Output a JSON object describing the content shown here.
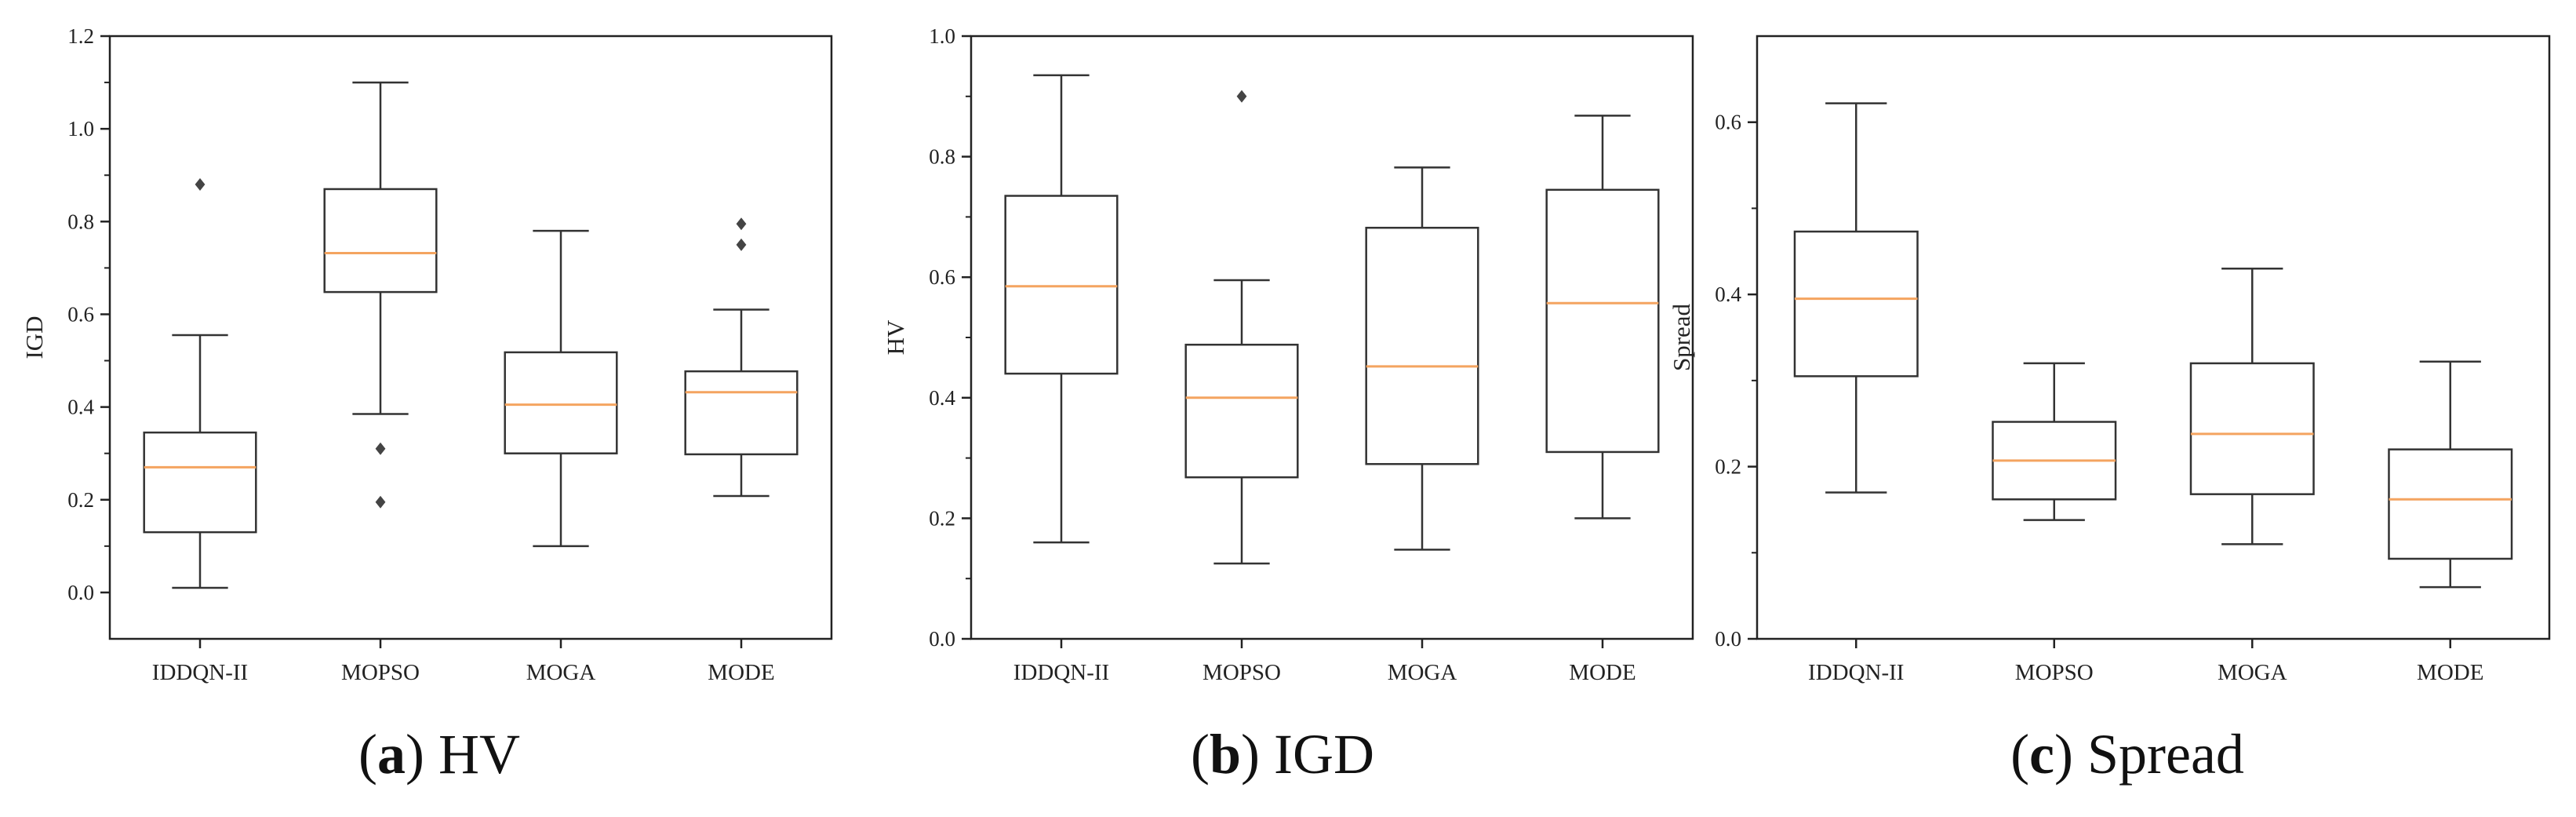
{
  "chart_data": [
    {
      "type": "box",
      "caption_letter": "a",
      "caption_text": "HV",
      "ylabel": "IGD",
      "ylim": [
        -0.1,
        1.2
      ],
      "yticks": [
        0.0,
        0.2,
        0.4,
        0.6,
        0.8,
        1.0,
        1.2
      ],
      "ytick_labels": [
        "0.0",
        "0.2",
        "0.4",
        "0.6",
        "0.8",
        "1.0",
        "1.2"
      ],
      "categories": [
        "IDDQN-II",
        "MOPSO",
        "MOGA",
        "MODE"
      ],
      "boxes": [
        {
          "whislo": 0.01,
          "q1": 0.13,
          "med": 0.27,
          "q3": 0.345,
          "whishi": 0.555,
          "fliers": [
            0.88
          ]
        },
        {
          "whislo": 0.385,
          "q1": 0.648,
          "med": 0.732,
          "q3": 0.87,
          "whishi": 1.1,
          "fliers": [
            0.31,
            0.195
          ]
        },
        {
          "whislo": 0.1,
          "q1": 0.3,
          "med": 0.405,
          "q3": 0.518,
          "whishi": 0.78,
          "fliers": []
        },
        {
          "whislo": 0.208,
          "q1": 0.298,
          "med": 0.432,
          "q3": 0.477,
          "whishi": 0.61,
          "fliers": [
            0.795,
            0.75
          ]
        }
      ]
    },
    {
      "type": "box",
      "caption_letter": "b",
      "caption_text": "IGD",
      "ylabel": "HV",
      "ylim": [
        0.0,
        1.0
      ],
      "yticks": [
        0.0,
        0.2,
        0.4,
        0.6,
        0.8,
        1.0
      ],
      "ytick_labels": [
        "0.0",
        "0.2",
        "0.4",
        "0.6",
        "0.8",
        "1.0"
      ],
      "categories": [
        "IDDQN-II",
        "MOPSO",
        "MOGA",
        "MODE"
      ],
      "boxes": [
        {
          "whislo": 0.16,
          "q1": 0.44,
          "med": 0.585,
          "q3": 0.735,
          "whishi": 0.935,
          "fliers": []
        },
        {
          "whislo": 0.125,
          "q1": 0.268,
          "med": 0.4,
          "q3": 0.488,
          "whishi": 0.595,
          "fliers": [
            0.9
          ]
        },
        {
          "whislo": 0.148,
          "q1": 0.29,
          "med": 0.452,
          "q3": 0.682,
          "whishi": 0.782,
          "fliers": []
        },
        {
          "whislo": 0.2,
          "q1": 0.31,
          "med": 0.557,
          "q3": 0.745,
          "whishi": 0.868,
          "fliers": []
        }
      ]
    },
    {
      "type": "box",
      "caption_letter": "c",
      "caption_text": "Spread",
      "ylabel": "Spread",
      "ylim": [
        0.0,
        0.7
      ],
      "yticks": [
        0.0,
        0.2,
        0.4,
        0.6
      ],
      "ytick_labels": [
        "0.0",
        "0.2",
        "0.4",
        "0.6"
      ],
      "categories": [
        "IDDQN-II",
        "MOPSO",
        "MOGA",
        "MODE"
      ],
      "boxes": [
        {
          "whislo": 0.17,
          "q1": 0.305,
          "med": 0.395,
          "q3": 0.473,
          "whishi": 0.622,
          "fliers": []
        },
        {
          "whislo": 0.138,
          "q1": 0.162,
          "med": 0.207,
          "q3": 0.252,
          "whishi": 0.32,
          "fliers": []
        },
        {
          "whislo": 0.11,
          "q1": 0.168,
          "med": 0.238,
          "q3": 0.32,
          "whishi": 0.43,
          "fliers": []
        },
        {
          "whislo": 0.06,
          "q1": 0.093,
          "med": 0.162,
          "q3": 0.22,
          "whishi": 0.322,
          "fliers": []
        }
      ]
    }
  ],
  "colors": {
    "axis": "#222222",
    "box": "#333333",
    "median": "#f4a460",
    "flier": "#444444"
  }
}
